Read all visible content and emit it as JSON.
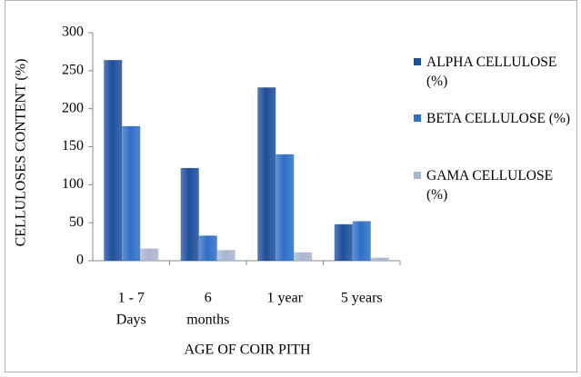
{
  "chart_data": {
    "type": "bar",
    "xlabel": "AGE OF COIR PITH",
    "ylabel": "CELLULOSES CONTENT (%)",
    "categories": [
      [
        "1 - 7",
        "Days"
      ],
      [
        "6",
        "months"
      ],
      [
        "1 year"
      ],
      [
        "5 years"
      ]
    ],
    "series": [
      {
        "name": "ALPHA CELLULOSE (%)",
        "color": "#1f4f9c",
        "values": [
          264,
          122,
          228,
          48
        ]
      },
      {
        "name": "BETA CELLULOSE (%)",
        "color": "#2f6fc6",
        "values": [
          177,
          33,
          140,
          52
        ]
      },
      {
        "name": "GAMA CELLULOSE (%)",
        "color": "#a9b6cf",
        "values": [
          16,
          14,
          11,
          4
        ]
      }
    ],
    "ylim": [
      0,
      300
    ],
    "yticks": [
      0,
      50,
      100,
      150,
      200,
      250,
      300
    ],
    "grid": false,
    "legend": "right"
  }
}
